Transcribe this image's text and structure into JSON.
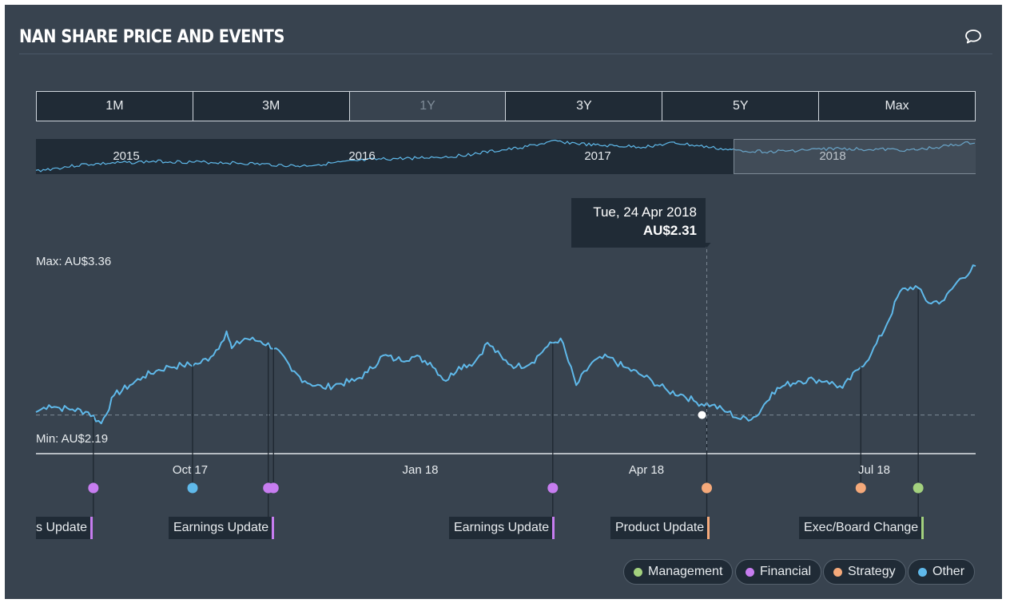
{
  "header": {
    "title": "NAN SHARE PRICE AND EVENTS",
    "comment_icon": "speech-bubble-icon"
  },
  "ranges": {
    "items": [
      "1M",
      "3M",
      "1Y",
      "3Y",
      "5Y",
      "Max"
    ],
    "selected": "1Y"
  },
  "navigator": {
    "years": [
      "2015",
      "2016",
      "2017",
      "2018"
    ]
  },
  "chart_data": {
    "type": "line",
    "currency": "AU$",
    "max_label": "Max: AU$3.36",
    "min_label": "Min: AU$2.19",
    "ylim": [
      2.15,
      3.4
    ],
    "x_ticks": [
      "Oct 17",
      "Jan 18",
      "Apr 18",
      "Jul 18"
    ],
    "tooltip": {
      "date": "Tue, 24 Apr 2018",
      "value": "AU$2.31"
    },
    "series": [
      {
        "color": "#5fb9ea",
        "x": [
          0,
          2,
          5,
          9,
          14,
          20,
          25,
          30,
          36,
          41,
          46,
          51,
          56,
          62,
          67,
          71,
          73,
          74,
          75,
          80,
          86,
          92,
          98,
          103,
          110,
          116,
          122,
          127,
          133,
          138,
          145,
          151,
          157,
          162,
          168,
          173,
          179,
          184,
          190,
          195,
          201,
          207,
          213,
          219,
          225,
          231,
          236,
          242,
          248,
          253,
          259,
          265,
          270,
          276,
          282,
          287,
          292,
          298,
          303,
          309,
          315,
          320,
          326,
          331,
          337,
          342,
          348,
          353,
          360
        ],
        "values": [
          2.33,
          2.35,
          2.38,
          2.36,
          2.35,
          2.33,
          2.25,
          2.45,
          2.52,
          2.58,
          2.62,
          2.65,
          2.66,
          2.67,
          2.72,
          2.82,
          2.9,
          2.84,
          2.78,
          2.85,
          2.83,
          2.78,
          2.62,
          2.55,
          2.5,
          2.53,
          2.55,
          2.61,
          2.73,
          2.7,
          2.72,
          2.68,
          2.55,
          2.65,
          2.68,
          2.82,
          2.7,
          2.65,
          2.68,
          2.78,
          2.85,
          2.52,
          2.68,
          2.72,
          2.65,
          2.6,
          2.55,
          2.48,
          2.45,
          2.4,
          2.38,
          2.33,
          2.28,
          2.3,
          2.47,
          2.52,
          2.55,
          2.56,
          2.55,
          2.5,
          2.63,
          2.74,
          2.95,
          3.18,
          3.22,
          3.1,
          3.12,
          3.25,
          3.36
        ]
      }
    ],
    "reference_value": 2.31,
    "tooltip_x": 257
  },
  "events": [
    {
      "x": 22,
      "category": "Financial",
      "label": "Earnings Update"
    },
    {
      "x": 60,
      "category": "Other",
      "label": null
    },
    {
      "x": 89,
      "category": "Financial",
      "label": "Earnings Update"
    },
    {
      "x": 91,
      "category": "Financial",
      "label": null
    },
    {
      "x": 198,
      "category": "Financial",
      "label": "Earnings Update"
    },
    {
      "x": 257,
      "category": "Strategy",
      "label": "Product Update"
    },
    {
      "x": 316,
      "category": "Strategy",
      "label": null
    },
    {
      "x": 338,
      "category": "Management",
      "label": "Exec/Board Change"
    }
  ],
  "event_labels": {
    "e0": "s Update",
    "e2": "Earnings Update",
    "e4": "Earnings Update",
    "e5": "Product Update",
    "e7": "Exec/Board Change"
  },
  "legend": [
    {
      "label": "Management",
      "color": "#a3d17e"
    },
    {
      "label": "Financial",
      "color": "#c77df0"
    },
    {
      "label": "Strategy",
      "color": "#f5a97a"
    },
    {
      "label": "Other",
      "color": "#5fb9ea"
    }
  ]
}
